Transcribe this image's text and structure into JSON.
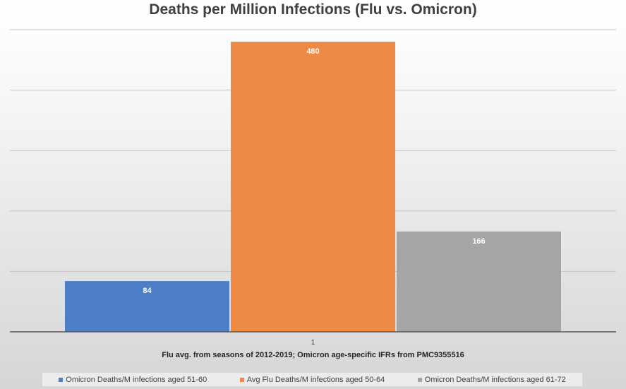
{
  "chart_data": {
    "type": "bar",
    "title": "Deaths per Million Infections (Flu vs. Omicron)",
    "categories": [
      "1"
    ],
    "series": [
      {
        "name": "Omicron Deaths/M infections aged 51-60",
        "values": [
          84
        ],
        "color": "#4f7ec9"
      },
      {
        "name": "Avg Flu Deaths/M infections aged 50-64",
        "values": [
          480
        ],
        "color": "#ed8a45"
      },
      {
        "name": "Omicron Deaths/M infections aged 61-72",
        "values": [
          166
        ],
        "color": "#a5a5a5"
      }
    ],
    "xlabel": "Flu avg. from seasons of 2012-2019; Omicron age-specific IFRs from PMC9355516",
    "ylabel": "",
    "ylim": [
      0,
      500
    ],
    "grid": true,
    "legend": "bottom"
  }
}
